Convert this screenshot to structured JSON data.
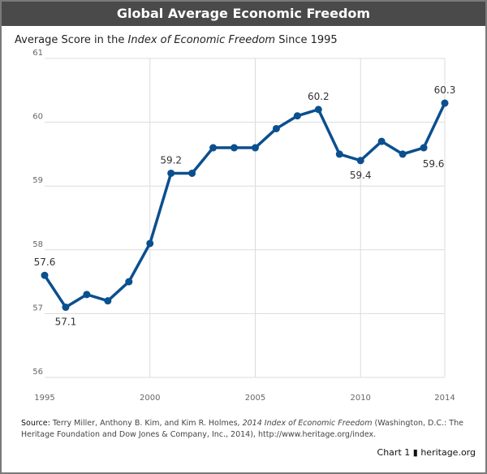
{
  "header": {
    "title": "Global Average Economic Freedom"
  },
  "subtitle": {
    "prefix": "Average Score in the ",
    "italic": "Index of Economic Freedom",
    "suffix": " Since 1995"
  },
  "chart_data": {
    "type": "line",
    "title": "Global Average Economic Freedom",
    "x": [
      1995,
      1996,
      1997,
      1998,
      1999,
      2000,
      2001,
      2002,
      2003,
      2004,
      2005,
      2006,
      2007,
      2008,
      2009,
      2010,
      2011,
      2012,
      2013,
      2014
    ],
    "values": [
      57.6,
      57.1,
      57.3,
      57.2,
      57.5,
      58.1,
      59.2,
      59.2,
      59.6,
      59.6,
      59.6,
      59.9,
      60.1,
      60.2,
      59.5,
      59.4,
      59.7,
      59.5,
      59.6,
      60.3
    ],
    "xlim": [
      1995,
      2014
    ],
    "ylim": [
      56,
      61
    ],
    "x_ticks": [
      "1995",
      "2000",
      "2005",
      "2010",
      "2014"
    ],
    "y_ticks": [
      "56",
      "57",
      "58",
      "59",
      "60",
      "61"
    ],
    "annotations": [
      {
        "x": 1995,
        "label": "57.6",
        "pos": "above"
      },
      {
        "x": 1996,
        "label": "57.1",
        "pos": "below"
      },
      {
        "x": 2001,
        "label": "59.2",
        "pos": "above"
      },
      {
        "x": 2008,
        "label": "60.2",
        "pos": "above"
      },
      {
        "x": 2010,
        "label": "59.4",
        "pos": "below"
      },
      {
        "x": 2013,
        "label": "59.6",
        "pos": "below-right"
      },
      {
        "x": 2014,
        "label": "60.3",
        "pos": "above"
      }
    ],
    "grid": true,
    "line_color": "#0b4f8f"
  },
  "source": {
    "label": "Source:",
    "text1": " Terry Miller, Anthony B. Kim, and Kim R. Holmes, ",
    "italic": "2014 Index of Economic Freedom",
    "text2": " (Washington, D.C.: The Heritage Foundation and Dow Jones & Company, Inc., 2014), http://www.heritage.org/index."
  },
  "credit": {
    "chart": "Chart 1",
    "icon": "liberty-bell-icon",
    "site": "heritage.org"
  }
}
